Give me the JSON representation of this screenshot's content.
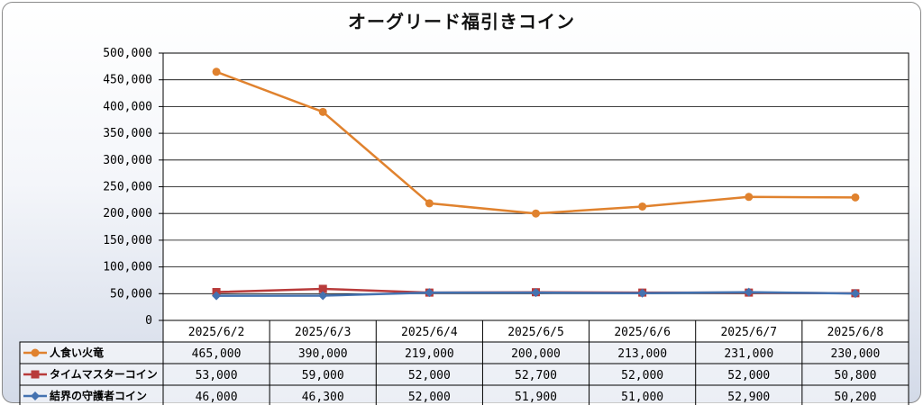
{
  "chart_data": {
    "type": "line",
    "title": "オーグリード福引きコイン",
    "categories": [
      "2025/6/2",
      "2025/6/3",
      "2025/6/4",
      "2025/6/5",
      "2025/6/6",
      "2025/6/7",
      "2025/6/8"
    ],
    "series": [
      {
        "name": "人食い火竜",
        "values": [
          465000,
          390000,
          219000,
          200000,
          213000,
          231000,
          230000
        ],
        "color": "#E0822E",
        "marker": "circle"
      },
      {
        "name": "タイムマスターコイン",
        "values": [
          53000,
          59000,
          52000,
          52700,
          52000,
          52000,
          50800
        ],
        "color": "#B83B3B",
        "marker": "square"
      },
      {
        "name": "結界の守護者コイン",
        "values": [
          46000,
          46300,
          52000,
          51900,
          51000,
          52900,
          50200
        ],
        "color": "#4472B0",
        "marker": "diamond"
      }
    ],
    "ylim": [
      0,
      500000
    ],
    "yticks": [
      0,
      50000,
      100000,
      150000,
      200000,
      250000,
      300000,
      350000,
      400000,
      450000,
      500000
    ],
    "ytick_labels": [
      "0",
      "50,000",
      "100,000",
      "150,000",
      "200,000",
      "250,000",
      "300,000",
      "350,000",
      "400,000",
      "450,000",
      "500,000"
    ],
    "table_values": [
      [
        "465,000",
        "390,000",
        "219,000",
        "200,000",
        "213,000",
        "231,000",
        "230,000"
      ],
      [
        "53,000",
        "59,000",
        "52,000",
        "52,700",
        "52,000",
        "52,000",
        "50,800"
      ],
      [
        "46,000",
        "46,300",
        "52,000",
        "51,900",
        "51,000",
        "52,900",
        "50,200"
      ]
    ],
    "grid": true,
    "legend": "data-table"
  }
}
